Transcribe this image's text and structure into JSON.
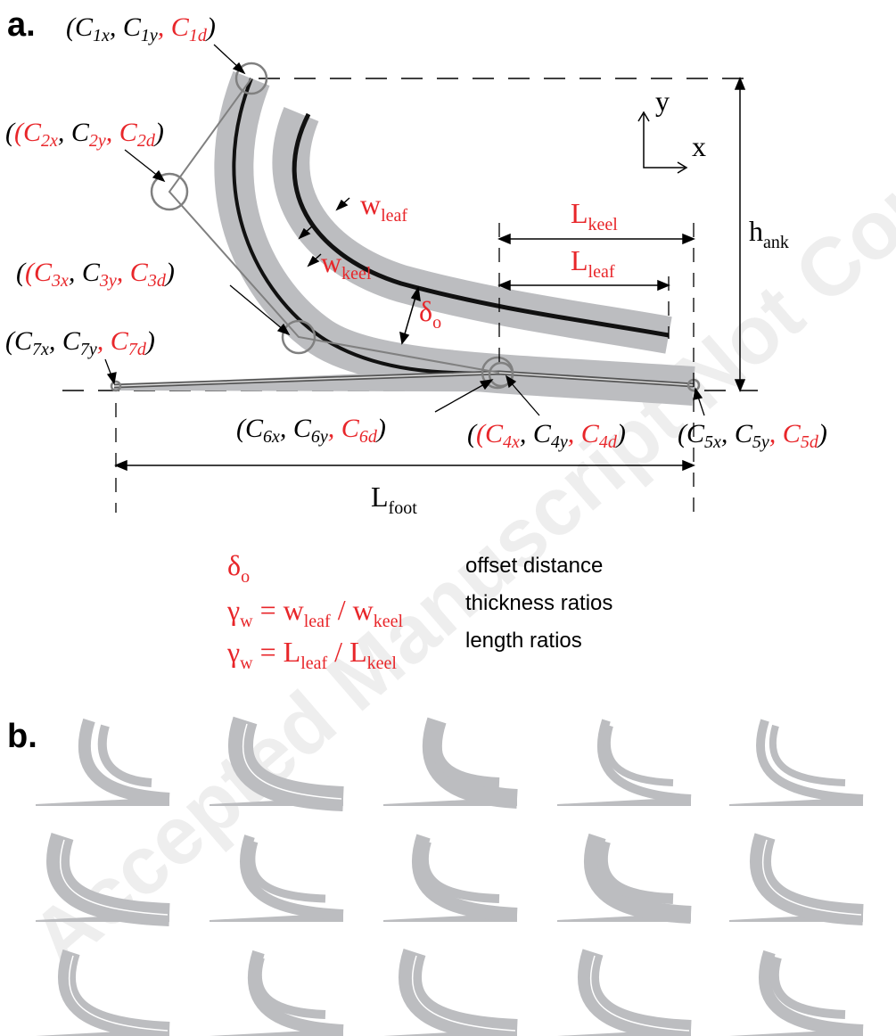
{
  "panel_a": {
    "label": "a.",
    "points": {
      "c1": [
        "(C",
        "1x",
        ", C",
        "1y",
        ", C",
        "1d",
        ")"
      ],
      "c2": [
        "(C",
        "2x",
        ", C",
        "2y",
        ", C",
        "2d",
        ")"
      ],
      "c3": [
        "(C",
        "3x",
        ", C",
        "3y",
        ", C",
        "3d",
        ")"
      ],
      "c7": [
        "(C",
        "7x",
        ", C",
        "7y",
        ", C",
        "7d",
        ")"
      ],
      "c6": [
        "(C",
        "6x",
        ", C",
        "6y",
        ", C",
        "6d",
        ")"
      ],
      "c4": [
        "(C",
        "4x",
        ", C",
        "4y",
        ", C",
        "4d",
        ")"
      ],
      "c5": [
        "(C",
        "5x",
        ", C",
        "5y",
        ", C",
        "5d",
        ")"
      ]
    },
    "dims": {
      "w_leaf": [
        "w",
        "leaf"
      ],
      "w_keel": [
        "w",
        "keel"
      ],
      "delta_o": [
        "δ",
        "o"
      ],
      "l_keel": [
        "L",
        "keel"
      ],
      "l_leaf": [
        "L",
        "leaf"
      ],
      "h_ank": [
        "h",
        "ank"
      ],
      "l_foot": [
        "L",
        "foot"
      ]
    },
    "axes": {
      "y": "y",
      "x": "x"
    },
    "legend": [
      {
        "formula": [
          "δ",
          "o",
          "",
          "",
          "",
          ""
        ],
        "desc": "offset distance"
      },
      {
        "formula": [
          "γ",
          "w",
          " = w",
          "leaf",
          " / w",
          "keel"
        ],
        "desc": "thickness ratios"
      },
      {
        "formula": [
          "γ",
          "w",
          " = L",
          "leaf",
          " / L",
          "keel"
        ],
        "desc": "length ratios"
      }
    ]
  },
  "panel_b": {
    "label": "b."
  },
  "watermark": "Accepted Manuscript Not Copyedited",
  "colors": {
    "param_red": "#e8262a",
    "shape_gray": "#bcbdc0",
    "outline_gray": "#808080"
  }
}
